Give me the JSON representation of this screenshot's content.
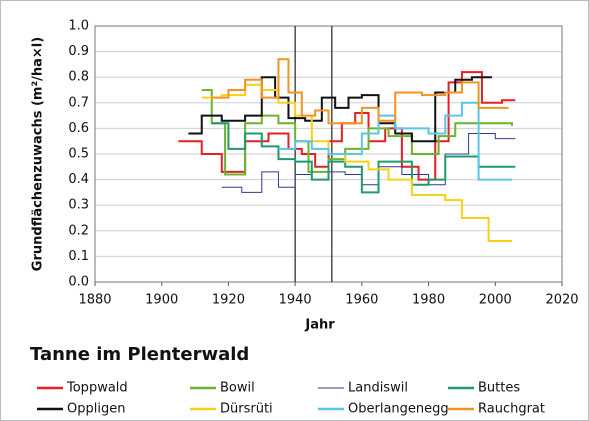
{
  "chart_data": {
    "type": "step",
    "title": "Tanne im Plenterwald",
    "x_label": "Jahr",
    "y_label": "Grundflächenzuwachs (m²/ha×l)",
    "xlim": [
      1880,
      2020
    ],
    "xticks": [
      1880,
      1900,
      1920,
      1940,
      1960,
      1980,
      2000,
      2020
    ],
    "ylim": [
      0,
      1
    ],
    "yticks": [
      {
        "value": 0,
        "label": "0.0"
      },
      0.1,
      0.2,
      0.3,
      0.4,
      0.5,
      0.6,
      0.7,
      0.8,
      0.9,
      {
        "value": 1,
        "label": "1.0"
      }
    ],
    "vlines": [
      1940,
      1951
    ],
    "series": [
      {
        "name": "Toppwald",
        "color": "#e41f26",
        "x": [
          1905,
          1912,
          1918,
          1925,
          1932,
          1938,
          1942,
          1946,
          1950,
          1954,
          1958,
          1962,
          1967,
          1972,
          1977,
          1982,
          1986,
          1990,
          1996,
          2002,
          2006
        ],
        "values": [
          0.55,
          0.5,
          0.43,
          0.55,
          0.58,
          0.52,
          0.5,
          0.45,
          0.55,
          0.62,
          0.66,
          0.55,
          0.6,
          0.45,
          0.4,
          0.55,
          0.78,
          0.82,
          0.7,
          0.71,
          0.71
        ]
      },
      {
        "name": "Bowil",
        "color": "#6ab42d",
        "x": [
          1912,
          1915,
          1919,
          1925,
          1930,
          1935,
          1940,
          1944,
          1950,
          1955,
          1962,
          1968,
          1975,
          1983,
          1988,
          1995,
          2005
        ],
        "values": [
          0.75,
          0.62,
          0.42,
          0.62,
          0.65,
          0.62,
          0.55,
          0.43,
          0.48,
          0.52,
          0.6,
          0.57,
          0.5,
          0.57,
          0.62,
          0.62,
          0.61
        ]
      },
      {
        "name": "Landiswil",
        "color": "#2e3a8c",
        "x": [
          1918,
          1924,
          1930,
          1935,
          1940,
          1945,
          1950,
          1955,
          1960,
          1965,
          1972,
          1980,
          1985,
          1992,
          2000,
          2006
        ],
        "values": [
          0.37,
          0.35,
          0.43,
          0.37,
          0.42,
          0.4,
          0.43,
          0.42,
          0.38,
          0.45,
          0.42,
          0.38,
          0.5,
          0.58,
          0.56,
          0.56
        ]
      },
      {
        "name": "Buttes",
        "color": "#1f9a6e",
        "x": [
          1915,
          1920,
          1925,
          1930,
          1935,
          1940,
          1945,
          1950,
          1955,
          1960,
          1965,
          1970,
          1975,
          1980,
          1985,
          1990,
          1995,
          2000,
          2006
        ],
        "values": [
          0.62,
          0.52,
          0.58,
          0.53,
          0.48,
          0.47,
          0.4,
          0.47,
          0.45,
          0.35,
          0.47,
          0.47,
          0.38,
          0.4,
          0.49,
          0.49,
          0.45,
          0.45,
          0.45
        ]
      },
      {
        "name": "Oppligen",
        "color": "#111111",
        "x": [
          1908,
          1912,
          1918,
          1925,
          1930,
          1934,
          1938,
          1943,
          1948,
          1952,
          1956,
          1960,
          1965,
          1970,
          1975,
          1982,
          1988,
          1993,
          1999
        ],
        "values": [
          0.58,
          0.65,
          0.63,
          0.65,
          0.8,
          0.72,
          0.64,
          0.63,
          0.72,
          0.68,
          0.72,
          0.73,
          0.62,
          0.58,
          0.55,
          0.74,
          0.79,
          0.8,
          0.8
        ]
      },
      {
        "name": "Dürsrüti",
        "color": "#f7d117",
        "x": [
          1912,
          1918,
          1925,
          1930,
          1935,
          1940,
          1945,
          1950,
          1955,
          1962,
          1968,
          1975,
          1985,
          1990,
          1998,
          2005
        ],
        "values": [
          0.72,
          0.73,
          0.77,
          0.75,
          0.7,
          0.65,
          0.55,
          0.5,
          0.47,
          0.44,
          0.4,
          0.34,
          0.32,
          0.25,
          0.16,
          0.16
        ]
      },
      {
        "name": "Oberlangenegg",
        "color": "#5bc5e8",
        "x": [
          1935,
          1940,
          1945,
          1950,
          1955,
          1960,
          1965,
          1970,
          1975,
          1980,
          1985,
          1990,
          1995,
          2000,
          2005
        ],
        "values": [
          0.52,
          0.55,
          0.52,
          0.5,
          0.5,
          0.58,
          0.65,
          0.6,
          0.6,
          0.58,
          0.65,
          0.7,
          0.4,
          0.4,
          0.4
        ]
      },
      {
        "name": "Rauchgrat",
        "color": "#f39322",
        "x": [
          1915,
          1920,
          1925,
          1930,
          1935,
          1938,
          1942,
          1946,
          1950,
          1955,
          1960,
          1965,
          1970,
          1978,
          1985,
          1990,
          1995,
          2000,
          2004
        ],
        "values": [
          0.72,
          0.75,
          0.79,
          0.72,
          0.87,
          0.74,
          0.65,
          0.67,
          0.62,
          0.62,
          0.68,
          0.63,
          0.74,
          0.73,
          0.74,
          0.78,
          0.68,
          0.68,
          0.68
        ]
      }
    ]
  }
}
